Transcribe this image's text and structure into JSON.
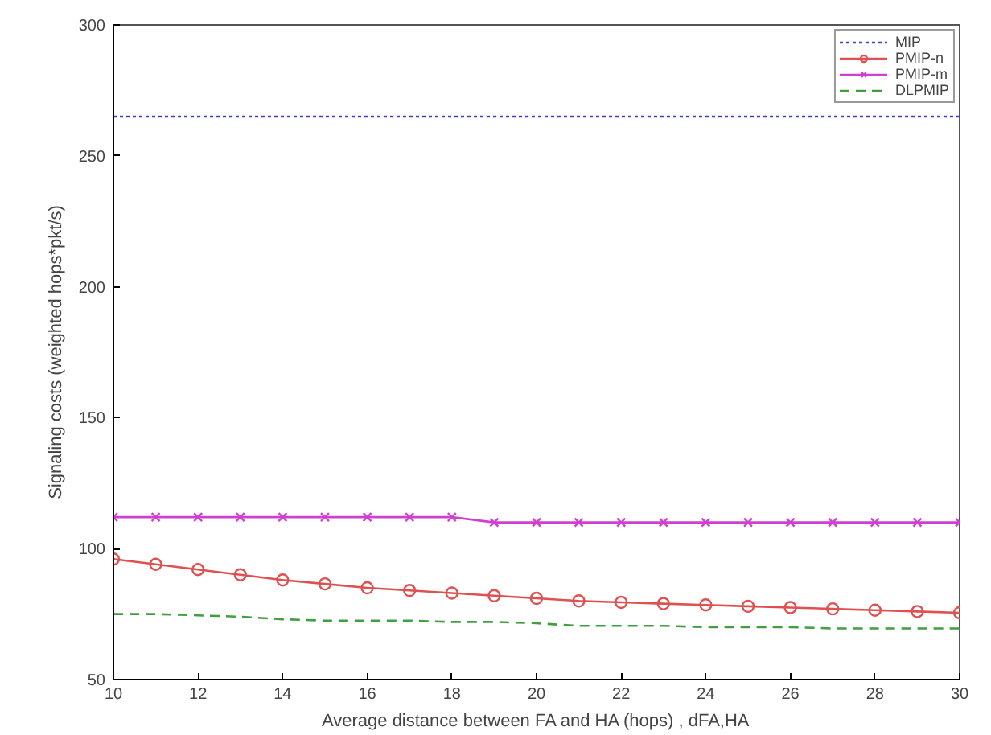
{
  "chart_data": {
    "type": "line",
    "xlabel": "Average distance between FA and HA (hops) , dFA,HA",
    "ylabel": "Signaling costs (weighted hops*pkt/s)",
    "x": [
      10,
      11,
      12,
      13,
      14,
      15,
      16,
      17,
      18,
      19,
      20,
      21,
      22,
      23,
      24,
      25,
      26,
      27,
      28,
      29,
      30
    ],
    "series": [
      {
        "name": "MIP",
        "color": "#4040d0",
        "line_style": "dotted",
        "marker": "none",
        "values": [
          265,
          265,
          265,
          265,
          265,
          265,
          265,
          265,
          265,
          265,
          265,
          265,
          265,
          265,
          265,
          265,
          265,
          265,
          265,
          265,
          265
        ]
      },
      {
        "name": "PMIP-n",
        "color": "#e05050",
        "line_style": "solid",
        "marker": "circle",
        "values": [
          96,
          94,
          92,
          90,
          88,
          86.5,
          85,
          84,
          83,
          82,
          81,
          80,
          79.5,
          79,
          78.5,
          78,
          77.5,
          77,
          76.5,
          76,
          75.5
        ]
      },
      {
        "name": "PMIP-m",
        "color": "#d040d0",
        "line_style": "solid",
        "marker": "cross",
        "values": [
          112,
          112,
          112,
          112,
          112,
          112,
          112,
          112,
          112,
          110,
          110,
          110,
          110,
          110,
          110,
          110,
          110,
          110,
          110,
          110,
          110
        ]
      },
      {
        "name": "DLPMIP",
        "color": "#40a040",
        "line_style": "dashed",
        "marker": "none",
        "values": [
          75,
          75,
          74.5,
          74,
          73,
          72.5,
          72.5,
          72.5,
          72,
          72,
          71.5,
          70.5,
          70.5,
          70.5,
          70,
          70,
          70,
          69.5,
          69.5,
          69.5,
          69.5
        ]
      }
    ],
    "xlim": [
      10,
      30
    ],
    "ylim": [
      50,
      300
    ],
    "xticks": [
      10,
      12,
      14,
      16,
      18,
      20,
      22,
      24,
      26,
      28,
      30
    ],
    "yticks": [
      50,
      100,
      150,
      200,
      250,
      300
    ],
    "grid": false,
    "legend": "top right"
  }
}
